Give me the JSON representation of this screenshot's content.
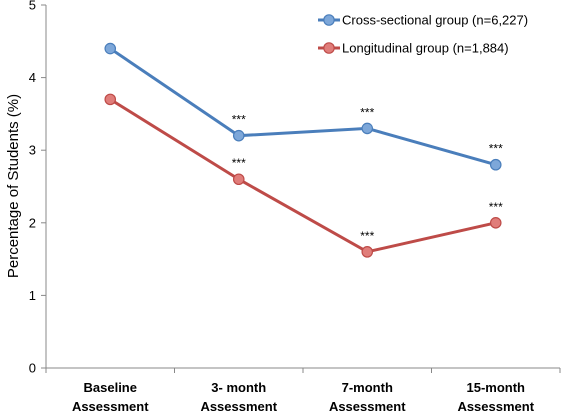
{
  "chart_data": {
    "type": "line",
    "ylabel": "Percentage of Students (%)",
    "ylim": [
      0,
      5
    ],
    "yticks": [
      "0",
      "1",
      "2",
      "3",
      "4",
      "5"
    ],
    "categories": [
      [
        "Baseline",
        "Assessment"
      ],
      [
        "3- month",
        "Assessment"
      ],
      [
        "7-month",
        "Assessment"
      ],
      [
        "15-month",
        "Assessment"
      ]
    ],
    "legend_position": "top-right",
    "grid": false,
    "series": [
      {
        "name": "Cross-sectional group (n=6,227)",
        "color": "#4a7ebb",
        "marker_color": "#7da7d9",
        "values": [
          4.4,
          3.2,
          3.3,
          2.8
        ],
        "annotations": [
          "",
          "***",
          "***",
          "***"
        ]
      },
      {
        "name": "Longitudinal group (n=1,884)",
        "color": "#be4b48",
        "marker_color": "#e07d7a",
        "values": [
          3.7,
          2.6,
          1.6,
          2.0
        ],
        "annotations": [
          "",
          "***",
          "***",
          "***"
        ]
      }
    ]
  }
}
